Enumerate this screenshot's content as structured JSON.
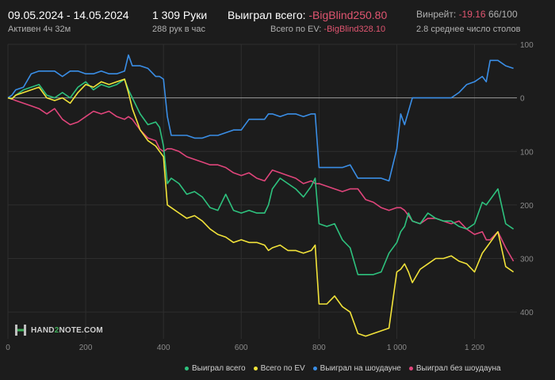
{
  "header": {
    "date_range": "09.05.2024 - 14.05.2024",
    "active_time": "Активен 4ч 32м",
    "hands": "1 309 Руки",
    "rate": "288 рук в час",
    "won_label": "Выиграл всего:",
    "won_value": "-BigBlind250.80",
    "ev_label": "Всего по EV:",
    "ev_value": "-BigBlind328.10",
    "winrate_label": "Винрейт:",
    "winrate_value": "-19.16",
    "winrate_extra": "66/100",
    "tables": "2.8 среднее число столов"
  },
  "logo": {
    "text_a": "HAND",
    "text_b": "2",
    "text_c": "NOTE.COM"
  },
  "colors": {
    "won": "#2ec27e",
    "ev": "#f2e33a",
    "showdown": "#3a8ee6",
    "nonshowdown": "#e0457b",
    "negative": "#e05570"
  },
  "chart_data": {
    "type": "line",
    "title": "",
    "xlabel": "",
    "ylabel": "",
    "xlim": [
      0,
      1309
    ],
    "ylim": [
      -100,
      450
    ],
    "y_inverted": true,
    "x_ticks": [
      0,
      200,
      400,
      600,
      800,
      1000,
      1200
    ],
    "x_tick_labels": [
      "0",
      "200",
      "400",
      "600",
      "800",
      "1 000",
      "1 200"
    ],
    "y_ticks": [
      -100,
      0,
      100,
      200,
      300,
      400
    ],
    "y_tick_labels": [
      "100",
      "0",
      "100",
      "200",
      "300",
      "400"
    ],
    "legend_position": "bottom-right",
    "series": [
      {
        "name": "Выиграл всего",
        "color": "#2ec27e",
        "x": [
          0,
          10,
          20,
          40,
          60,
          80,
          100,
          120,
          140,
          160,
          180,
          200,
          220,
          240,
          260,
          280,
          300,
          310,
          320,
          340,
          360,
          380,
          390,
          400,
          410,
          420,
          440,
          460,
          480,
          500,
          520,
          540,
          560,
          580,
          600,
          620,
          640,
          660,
          670,
          680,
          700,
          720,
          740,
          760,
          780,
          790,
          800,
          820,
          840,
          860,
          880,
          900,
          920,
          940,
          960,
          980,
          1000,
          1010,
          1020,
          1030,
          1040,
          1060,
          1080,
          1100,
          1120,
          1140,
          1160,
          1180,
          1200,
          1220,
          1230,
          1240,
          1260,
          1280,
          1300
        ],
        "values": [
          0,
          2,
          -5,
          -15,
          -20,
          -25,
          -5,
          0,
          -10,
          0,
          -20,
          -30,
          -15,
          -25,
          -20,
          -25,
          -35,
          -15,
          0,
          30,
          50,
          45,
          55,
          90,
          160,
          150,
          160,
          180,
          175,
          185,
          205,
          210,
          180,
          210,
          215,
          210,
          215,
          215,
          200,
          170,
          150,
          160,
          170,
          185,
          165,
          150,
          235,
          240,
          235,
          265,
          280,
          330,
          330,
          330,
          325,
          290,
          270,
          250,
          240,
          215,
          230,
          235,
          215,
          225,
          230,
          230,
          240,
          245,
          235,
          195,
          200,
          190,
          170,
          235,
          245
        ]
      },
      {
        "name": "Всего по EV",
        "color": "#f2e33a",
        "x": [
          0,
          10,
          20,
          40,
          60,
          80,
          100,
          120,
          140,
          160,
          180,
          200,
          220,
          240,
          260,
          280,
          300,
          310,
          320,
          340,
          360,
          380,
          390,
          400,
          410,
          420,
          440,
          460,
          480,
          500,
          520,
          540,
          560,
          580,
          600,
          620,
          640,
          660,
          670,
          680,
          700,
          720,
          740,
          760,
          780,
          790,
          800,
          820,
          840,
          860,
          880,
          900,
          920,
          940,
          960,
          980,
          1000,
          1010,
          1020,
          1030,
          1040,
          1060,
          1080,
          1100,
          1120,
          1140,
          1160,
          1180,
          1200,
          1220,
          1230,
          1240,
          1260,
          1280,
          1300
        ],
        "values": [
          0,
          2,
          -5,
          -10,
          -15,
          -20,
          0,
          5,
          0,
          10,
          -10,
          -25,
          -20,
          -30,
          -25,
          -30,
          -35,
          -10,
          20,
          60,
          80,
          90,
          100,
          110,
          200,
          205,
          215,
          225,
          220,
          230,
          245,
          255,
          260,
          270,
          265,
          270,
          270,
          275,
          285,
          280,
          275,
          285,
          285,
          290,
          285,
          275,
          385,
          385,
          370,
          390,
          400,
          440,
          445,
          440,
          435,
          430,
          325,
          320,
          310,
          325,
          345,
          320,
          310,
          300,
          300,
          295,
          305,
          310,
          325,
          290,
          280,
          270,
          250,
          315,
          325
        ]
      },
      {
        "name": "Выиграл на шоудауне",
        "color": "#3a8ee6",
        "x": [
          0,
          10,
          20,
          40,
          60,
          80,
          100,
          120,
          140,
          160,
          180,
          200,
          220,
          240,
          260,
          280,
          300,
          310,
          320,
          340,
          360,
          380,
          390,
          400,
          410,
          420,
          440,
          460,
          480,
          500,
          520,
          540,
          560,
          580,
          600,
          620,
          640,
          660,
          670,
          680,
          700,
          720,
          740,
          760,
          780,
          790,
          800,
          820,
          840,
          860,
          880,
          900,
          920,
          940,
          960,
          980,
          1000,
          1010,
          1020,
          1030,
          1040,
          1060,
          1080,
          1100,
          1120,
          1140,
          1160,
          1180,
          1200,
          1220,
          1230,
          1240,
          1260,
          1280,
          1300
        ],
        "values": [
          0,
          -5,
          -15,
          -20,
          -45,
          -50,
          -50,
          -50,
          -40,
          -50,
          -50,
          -45,
          -45,
          -50,
          -45,
          -45,
          -50,
          -80,
          -60,
          -60,
          -55,
          -40,
          -40,
          -35,
          35,
          70,
          70,
          70,
          75,
          75,
          70,
          70,
          65,
          60,
          60,
          40,
          40,
          40,
          30,
          30,
          35,
          30,
          30,
          35,
          30,
          30,
          130,
          130,
          130,
          130,
          125,
          150,
          150,
          150,
          150,
          155,
          95,
          30,
          50,
          25,
          0,
          0,
          0,
          0,
          0,
          0,
          -10,
          -25,
          -30,
          -40,
          -30,
          -70,
          -70,
          -60,
          -55
        ]
      },
      {
        "name": "Выиграл без шоудауна",
        "color": "#e0457b",
        "x": [
          0,
          10,
          20,
          40,
          60,
          80,
          100,
          120,
          140,
          160,
          180,
          200,
          220,
          240,
          260,
          280,
          300,
          310,
          320,
          340,
          360,
          380,
          390,
          400,
          410,
          420,
          440,
          460,
          480,
          500,
          520,
          540,
          560,
          580,
          600,
          620,
          640,
          660,
          670,
          680,
          700,
          720,
          740,
          760,
          780,
          790,
          800,
          820,
          840,
          860,
          880,
          900,
          920,
          940,
          960,
          980,
          1000,
          1010,
          1020,
          1030,
          1040,
          1060,
          1080,
          1100,
          1120,
          1140,
          1160,
          1180,
          1200,
          1220,
          1230,
          1240,
          1260,
          1280,
          1300
        ],
        "values": [
          0,
          2,
          5,
          10,
          15,
          20,
          30,
          20,
          40,
          50,
          45,
          35,
          25,
          30,
          25,
          35,
          40,
          35,
          40,
          60,
          75,
          80,
          95,
          100,
          95,
          95,
          100,
          110,
          115,
          120,
          125,
          125,
          130,
          140,
          145,
          140,
          150,
          155,
          145,
          135,
          140,
          145,
          150,
          160,
          155,
          160,
          160,
          165,
          170,
          175,
          170,
          170,
          190,
          195,
          205,
          210,
          205,
          205,
          210,
          220,
          230,
          235,
          225,
          225,
          230,
          235,
          230,
          245,
          255,
          250,
          265,
          265,
          250,
          280,
          305
        ]
      }
    ]
  }
}
